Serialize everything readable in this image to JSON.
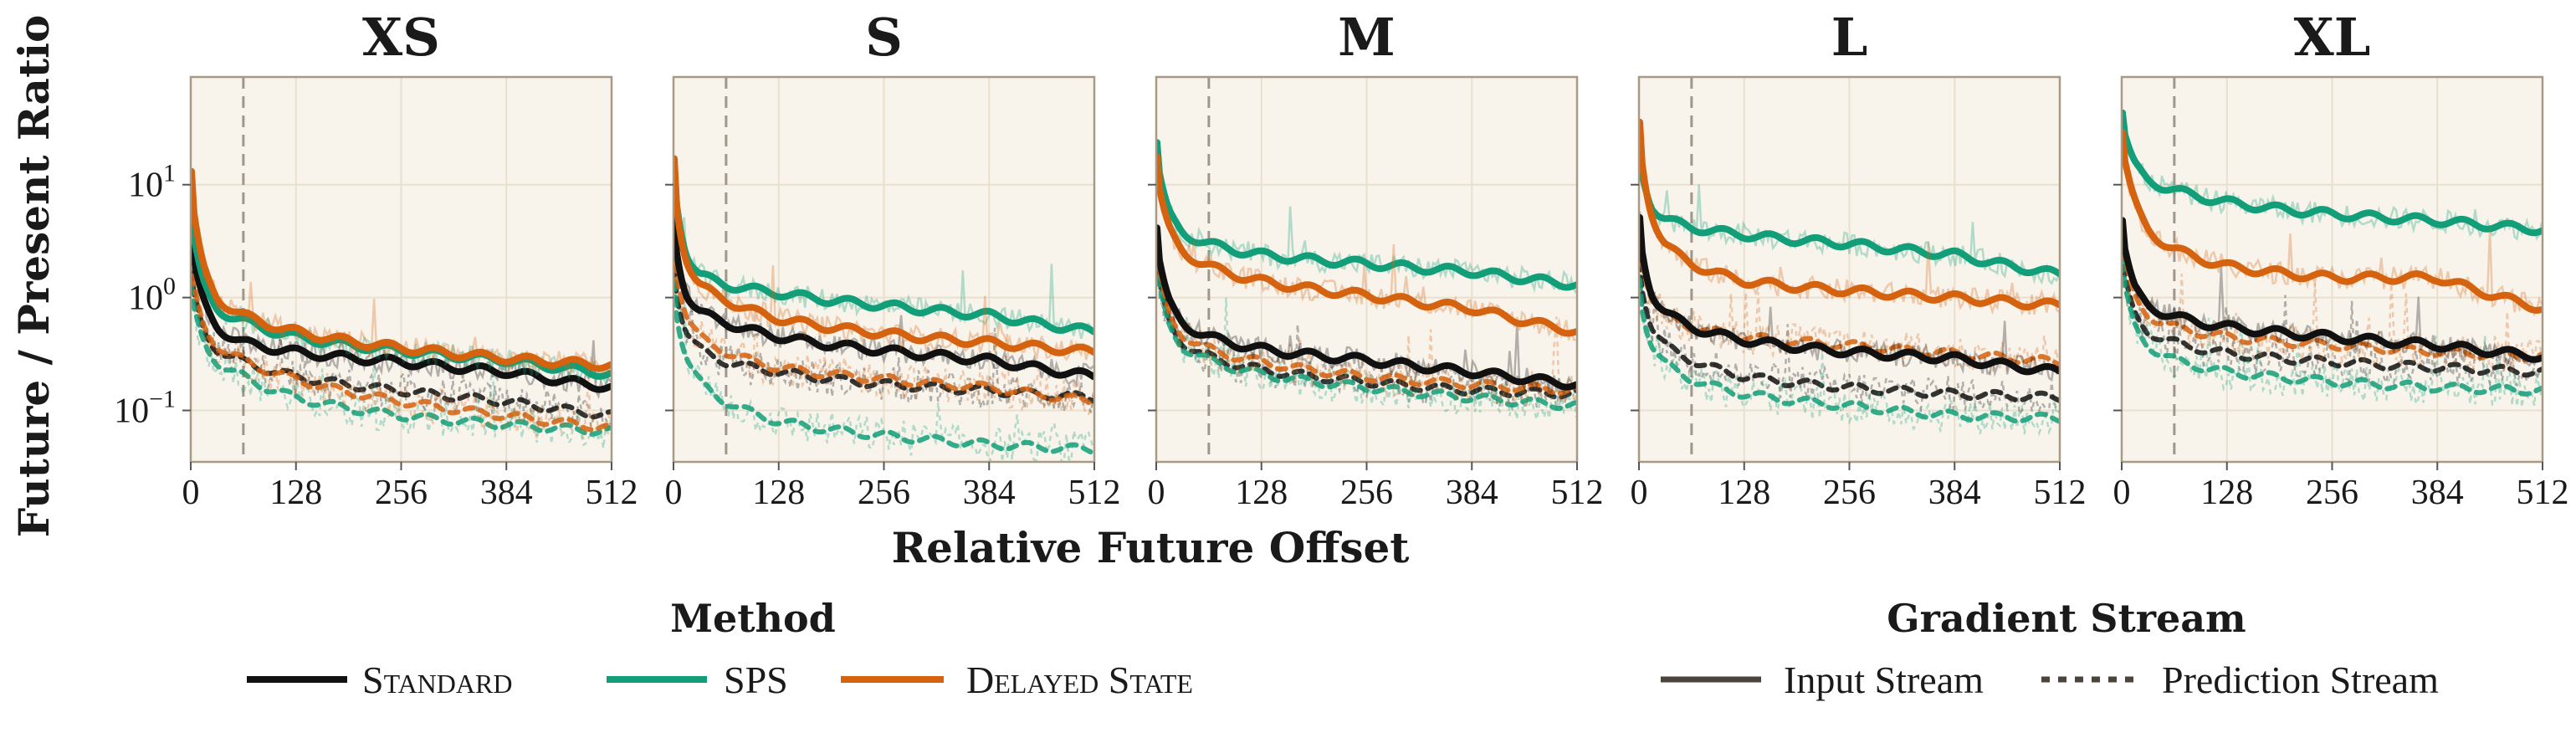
{
  "chart_data": {
    "type": "line",
    "ylabel": "Future / Present Ratio",
    "xlabel": "Relative Future Offset",
    "y_scale": "log",
    "ylim": [
      0.035,
      90
    ],
    "xlim": [
      0,
      512
    ],
    "xticks": [
      0,
      128,
      256,
      384,
      512
    ],
    "yticks": [
      {
        "value": 0.1,
        "label": "10",
        "exp": "−1"
      },
      {
        "value": 1,
        "label": "10",
        "exp": "0"
      },
      {
        "value": 10,
        "label": "10",
        "exp": "1"
      }
    ],
    "vline_x": 64,
    "grid": true,
    "colors": {
      "Standard": "#111111",
      "SPS": "#129e78",
      "Delayed State": "#d5620f",
      "background": "#f8f4ec",
      "frame": "#a89a85"
    },
    "x": [
      1,
      8,
      16,
      32,
      64,
      128,
      256,
      384,
      512
    ],
    "panels": [
      {
        "title": "XS",
        "series": [
          {
            "method": "Standard",
            "stream": "Input Stream",
            "values": [
              4.2,
              1.5,
              0.9,
              0.55,
              0.4,
              0.33,
              0.27,
              0.22,
              0.16
            ]
          },
          {
            "method": "Standard",
            "stream": "Prediction Stream",
            "values": [
              1.6,
              0.8,
              0.5,
              0.35,
              0.27,
              0.2,
              0.15,
              0.12,
              0.09
            ]
          },
          {
            "method": "SPS",
            "stream": "Input Stream",
            "values": [
              6.5,
              2.3,
              1.3,
              0.8,
              0.62,
              0.45,
              0.34,
              0.28,
              0.21
            ]
          },
          {
            "method": "SPS",
            "stream": "Prediction Stream",
            "values": [
              1.2,
              0.6,
              0.4,
              0.27,
              0.2,
              0.13,
              0.09,
              0.075,
              0.065
            ]
          },
          {
            "method": "Delayed State",
            "stream": "Input Stream",
            "values": [
              13,
              3.5,
              1.8,
              1.0,
              0.7,
              0.5,
              0.36,
              0.29,
              0.25
            ]
          },
          {
            "method": "Delayed State",
            "stream": "Prediction Stream",
            "values": [
              2.0,
              0.9,
              0.55,
              0.38,
              0.28,
              0.19,
              0.12,
              0.09,
              0.07
            ]
          }
        ]
      },
      {
        "title": "S",
        "series": [
          {
            "method": "Standard",
            "stream": "Input Stream",
            "values": [
              5.0,
              1.8,
              1.1,
              0.75,
              0.6,
              0.45,
              0.34,
              0.28,
              0.2
            ]
          },
          {
            "method": "Standard",
            "stream": "Prediction Stream",
            "values": [
              2.0,
              0.8,
              0.5,
              0.35,
              0.27,
              0.22,
              0.17,
              0.15,
              0.13
            ]
          },
          {
            "method": "SPS",
            "stream": "Input Stream",
            "values": [
              15,
              4.5,
              2.5,
              1.6,
              1.3,
              1.1,
              0.85,
              0.7,
              0.5
            ]
          },
          {
            "method": "SPS",
            "stream": "Prediction Stream",
            "values": [
              1.5,
              0.5,
              0.3,
              0.18,
              0.12,
              0.08,
              0.06,
              0.05,
              0.045
            ]
          },
          {
            "method": "Delayed State",
            "stream": "Input Stream",
            "values": [
              17,
              4.0,
              2.2,
              1.3,
              0.95,
              0.65,
              0.48,
              0.4,
              0.33
            ]
          },
          {
            "method": "Delayed State",
            "stream": "Prediction Stream",
            "values": [
              3.0,
              1.2,
              0.7,
              0.45,
              0.33,
              0.24,
              0.19,
              0.16,
              0.12
            ]
          }
        ]
      },
      {
        "title": "M",
        "series": [
          {
            "method": "Standard",
            "stream": "Input Stream",
            "values": [
              4.2,
              1.5,
              0.9,
              0.6,
              0.45,
              0.35,
              0.28,
              0.22,
              0.17
            ]
          },
          {
            "method": "Standard",
            "stream": "Prediction Stream",
            "values": [
              2.5,
              1.0,
              0.6,
              0.4,
              0.3,
              0.23,
              0.18,
              0.15,
              0.14
            ]
          },
          {
            "method": "SPS",
            "stream": "Input Stream",
            "values": [
              24,
              9.0,
              5.5,
              3.8,
              3.0,
              2.4,
              2.0,
              1.7,
              1.3
            ]
          },
          {
            "method": "SPS",
            "stream": "Prediction Stream",
            "values": [
              2.0,
              0.9,
              0.55,
              0.37,
              0.28,
              0.21,
              0.16,
              0.13,
              0.11
            ]
          },
          {
            "method": "Delayed State",
            "stream": "Input Stream",
            "values": [
              18,
              6.5,
              4.0,
              2.6,
              1.9,
              1.4,
              1.05,
              0.8,
              0.5
            ]
          },
          {
            "method": "Delayed State",
            "stream": "Prediction Stream",
            "values": [
              3.0,
              1.2,
              0.7,
              0.47,
              0.35,
              0.27,
              0.2,
              0.17,
              0.15
            ]
          }
        ]
      },
      {
        "title": "L",
        "series": [
          {
            "method": "Standard",
            "stream": "Input Stream",
            "values": [
              5.0,
              1.8,
              1.1,
              0.75,
              0.55,
              0.42,
              0.33,
              0.29,
              0.22
            ]
          },
          {
            "method": "Standard",
            "stream": "Prediction Stream",
            "values": [
              2.2,
              0.9,
              0.55,
              0.38,
              0.28,
              0.2,
              0.16,
              0.14,
              0.13
            ]
          },
          {
            "method": "SPS",
            "stream": "Input Stream",
            "values": [
              20,
              9.5,
              6.5,
              5.0,
              4.2,
              3.6,
              3.0,
              2.4,
              1.6
            ]
          },
          {
            "method": "SPS",
            "stream": "Prediction Stream",
            "values": [
              1.5,
              0.6,
              0.38,
              0.26,
              0.19,
              0.14,
              0.11,
              0.09,
              0.085
            ]
          },
          {
            "method": "Delayed State",
            "stream": "Input Stream",
            "values": [
              35,
              10,
              5.5,
              3.0,
              2.0,
              1.4,
              1.15,
              1.0,
              0.85
            ]
          },
          {
            "method": "Delayed State",
            "stream": "Prediction Stream",
            "values": [
              4.0,
              1.6,
              1.0,
              0.7,
              0.55,
              0.45,
              0.38,
              0.32,
              0.27
            ]
          }
        ]
      },
      {
        "title": "XL",
        "series": [
          {
            "method": "Standard",
            "stream": "Input Stream",
            "values": [
              5.0,
              2.0,
              1.2,
              0.85,
              0.68,
              0.55,
              0.45,
              0.38,
              0.3
            ]
          },
          {
            "method": "Standard",
            "stream": "Prediction Stream",
            "values": [
              2.5,
              1.1,
              0.7,
              0.5,
              0.4,
              0.32,
              0.27,
              0.24,
              0.22
            ]
          },
          {
            "method": "SPS",
            "stream": "Input Stream",
            "values": [
              45,
              22,
              15,
              11,
              9.0,
              7.0,
              5.5,
              4.8,
              4.0
            ]
          },
          {
            "method": "SPS",
            "stream": "Prediction Stream",
            "values": [
              2.0,
              0.9,
              0.55,
              0.38,
              0.28,
              0.22,
              0.18,
              0.16,
              0.15
            ]
          },
          {
            "method": "Delayed State",
            "stream": "Input Stream",
            "values": [
              30,
              12,
              7.0,
              4.0,
              2.7,
              1.9,
              1.5,
              1.5,
              0.8
            ]
          },
          {
            "method": "Delayed State",
            "stream": "Prediction Stream",
            "values": [
              3.5,
              1.6,
              1.0,
              0.7,
              0.55,
              0.45,
              0.38,
              0.33,
              0.3
            ]
          }
        ]
      }
    ],
    "legend": {
      "method_title": "Method",
      "methods": [
        "Standard",
        "SPS",
        "Delayed State"
      ],
      "stream_title": "Gradient Stream",
      "streams": [
        "Input Stream",
        "Prediction Stream"
      ]
    }
  }
}
